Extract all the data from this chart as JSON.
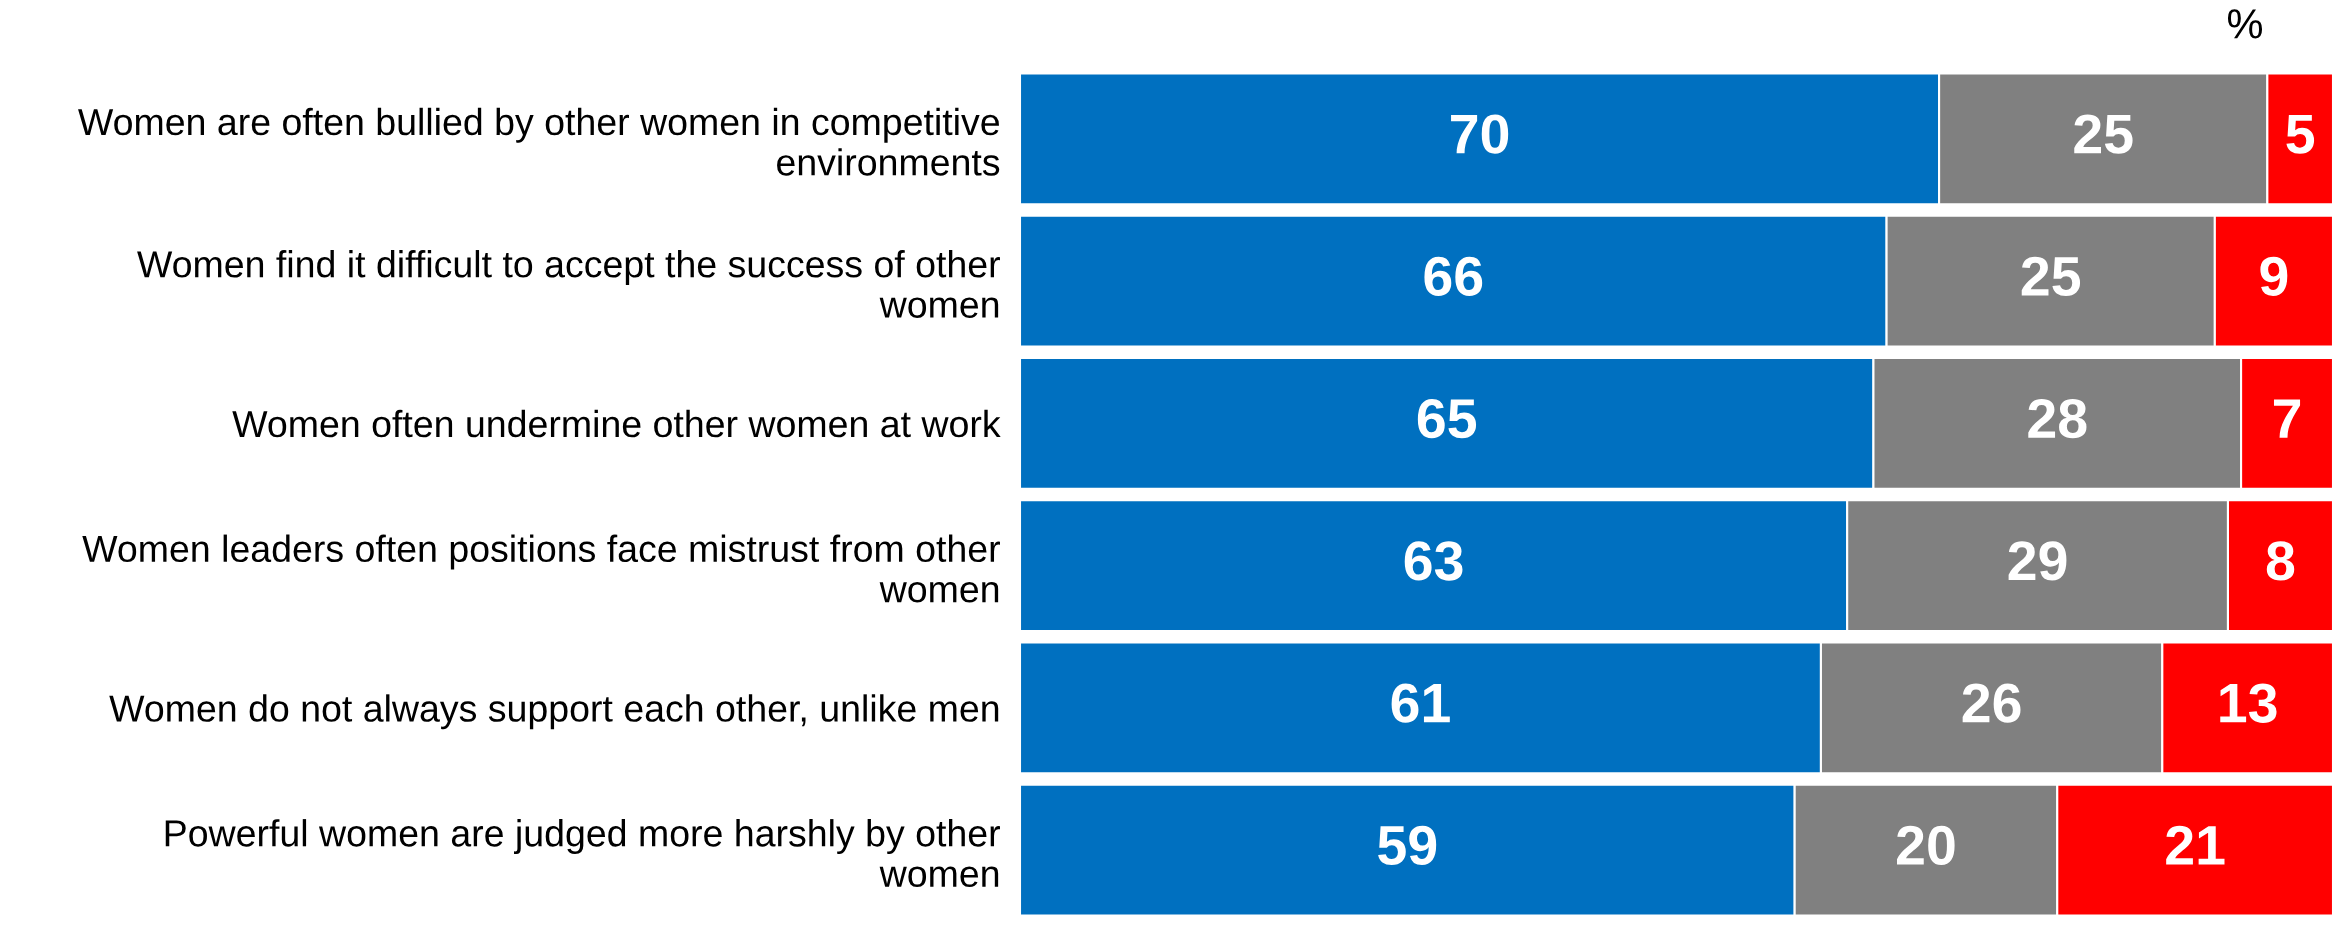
{
  "chart_data": {
    "type": "bar",
    "orientation": "horizontal",
    "stacked": true,
    "data_labels": true,
    "grid": false,
    "legend": false,
    "tick_labels": "y",
    "annotations": [
      "%"
    ],
    "categories": [
      "Women are often bullied by other women in competitive environments",
      "Women find it difficult to accept the success of other women",
      "Women often undermine other women at work",
      "Women leaders often positions face mistrust from other women",
      "Women do not always support each other, unlike men",
      "Powerful women are judged more harshly by other women"
    ],
    "series": [
      {
        "color": "#0070c0",
        "values": [
          70,
          66,
          65,
          63,
          61,
          59
        ]
      },
      {
        "color": "#808080",
        "values": [
          25,
          25,
          28,
          29,
          26,
          20
        ]
      },
      {
        "color": "#ff0000",
        "values": [
          5,
          9,
          7,
          8,
          13,
          21
        ]
      }
    ]
  }
}
